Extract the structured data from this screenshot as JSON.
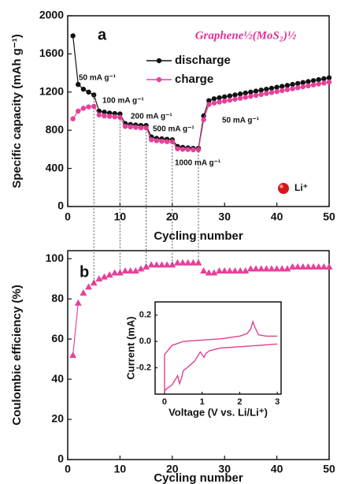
{
  "chart_data": [
    {
      "type": "line",
      "panel_label": "a",
      "title": "Graphene½(MoS₂)½",
      "x_label": "Cycling number",
      "y_label": "Specific capacity (mAh g⁻¹)",
      "xlim": [
        0,
        50
      ],
      "xticks": [
        0,
        10,
        20,
        30,
        40,
        50
      ],
      "ylim": [
        0,
        2000
      ],
      "yticks": [
        0,
        400,
        800,
        1200,
        1600,
        2000
      ],
      "x": [
        1,
        2,
        3,
        4,
        5,
        6,
        7,
        8,
        9,
        10,
        11,
        12,
        13,
        14,
        15,
        16,
        17,
        18,
        19,
        20,
        21,
        22,
        23,
        24,
        25,
        26,
        27,
        28,
        29,
        30,
        31,
        32,
        33,
        34,
        35,
        36,
        37,
        38,
        39,
        40,
        41,
        42,
        43,
        44,
        45,
        46,
        47,
        48,
        49,
        50
      ],
      "series": [
        {
          "name": "discharge",
          "color": "#111111",
          "values": [
            1790,
            1280,
            1230,
            1200,
            1170,
            1000,
            990,
            980,
            975,
            970,
            870,
            860,
            855,
            850,
            850,
            730,
            715,
            710,
            705,
            700,
            630,
            620,
            615,
            610,
            610,
            950,
            1110,
            1130,
            1140,
            1150,
            1160,
            1170,
            1180,
            1190,
            1200,
            1210,
            1220,
            1230,
            1240,
            1250,
            1260,
            1270,
            1280,
            1290,
            1300,
            1310,
            1320,
            1330,
            1340,
            1350
          ]
        },
        {
          "name": "charge",
          "color": "#e8409a",
          "values": [
            920,
            1000,
            1030,
            1045,
            1050,
            960,
            950,
            945,
            940,
            935,
            840,
            835,
            830,
            825,
            825,
            700,
            690,
            685,
            680,
            680,
            605,
            600,
            598,
            595,
            595,
            910,
            1070,
            1085,
            1095,
            1105,
            1115,
            1125,
            1135,
            1145,
            1155,
            1165,
            1175,
            1185,
            1195,
            1205,
            1215,
            1225,
            1235,
            1245,
            1255,
            1265,
            1275,
            1285,
            1295,
            1305
          ]
        }
      ],
      "annotations": [
        "50 mA g⁻¹",
        "100 mA g⁻¹",
        "200 mA g⁻¹",
        "500 mA g⁻¹",
        "1000 mA g⁻¹",
        "50 mA g⁻¹",
        "Li⁺"
      ]
    },
    {
      "type": "scatter",
      "panel_label": "b",
      "x_label": "Cycling number",
      "y_label": "Coulombic efficiency (%)",
      "xlim": [
        0,
        50
      ],
      "xticks": [
        0,
        10,
        20,
        30,
        40,
        50
      ],
      "ylim": [
        0,
        104
      ],
      "yticks": [
        0,
        20,
        40,
        60,
        80,
        100
      ],
      "x": [
        1,
        2,
        3,
        4,
        5,
        6,
        7,
        8,
        9,
        10,
        11,
        12,
        13,
        14,
        15,
        16,
        17,
        18,
        19,
        20,
        21,
        22,
        23,
        24,
        25,
        26,
        27,
        28,
        29,
        30,
        31,
        32,
        33,
        34,
        35,
        36,
        37,
        38,
        39,
        40,
        41,
        42,
        43,
        44,
        45,
        46,
        47,
        48,
        49,
        50
      ],
      "color": "#e8409a",
      "values": [
        52,
        78,
        83,
        86,
        88,
        90,
        91,
        92,
        93,
        93,
        94,
        94,
        94,
        95,
        96,
        97,
        97,
        97,
        97,
        97,
        98,
        98,
        98,
        98,
        98,
        94,
        93,
        93,
        94,
        94,
        94,
        94,
        94,
        94,
        95,
        95,
        95,
        95,
        95,
        95,
        95,
        95,
        96,
        96,
        96,
        96,
        96,
        96,
        96,
        96
      ]
    },
    {
      "type": "line",
      "x_label": "Voltage (V vs. Li/Li⁺)",
      "y_label": "Current (mA)",
      "xlim": [
        -0.25,
        3.1
      ],
      "xticks": [
        0,
        1,
        2,
        3
      ],
      "ylim": [
        -0.4,
        0.3
      ],
      "yticks": [
        -0.2,
        {
          "value": 0,
          "label": "0.0"
        },
        0.2
      ],
      "color": "#e0408f",
      "x": [
        3.0,
        2.5,
        2.0,
        1.5,
        1.2,
        1.1,
        1.05,
        1.0,
        0.95,
        0.8,
        0.6,
        0.5,
        0.45,
        0.4,
        0.35,
        0.2,
        0.05,
        0.0,
        0.0,
        0.2,
        0.5,
        1.0,
        1.5,
        2.0,
        2.2,
        2.3,
        2.35,
        2.4,
        2.5,
        2.7,
        3.0
      ],
      "values": [
        -0.02,
        -0.03,
        -0.04,
        -0.05,
        -0.07,
        -0.09,
        -0.12,
        -0.1,
        -0.08,
        -0.15,
        -0.2,
        -0.22,
        -0.28,
        -0.32,
        -0.26,
        -0.33,
        -0.36,
        -0.38,
        -0.1,
        -0.03,
        0.0,
        0.01,
        0.02,
        0.04,
        0.06,
        0.1,
        0.15,
        0.11,
        0.05,
        0.04,
        0.04
      ]
    }
  ]
}
